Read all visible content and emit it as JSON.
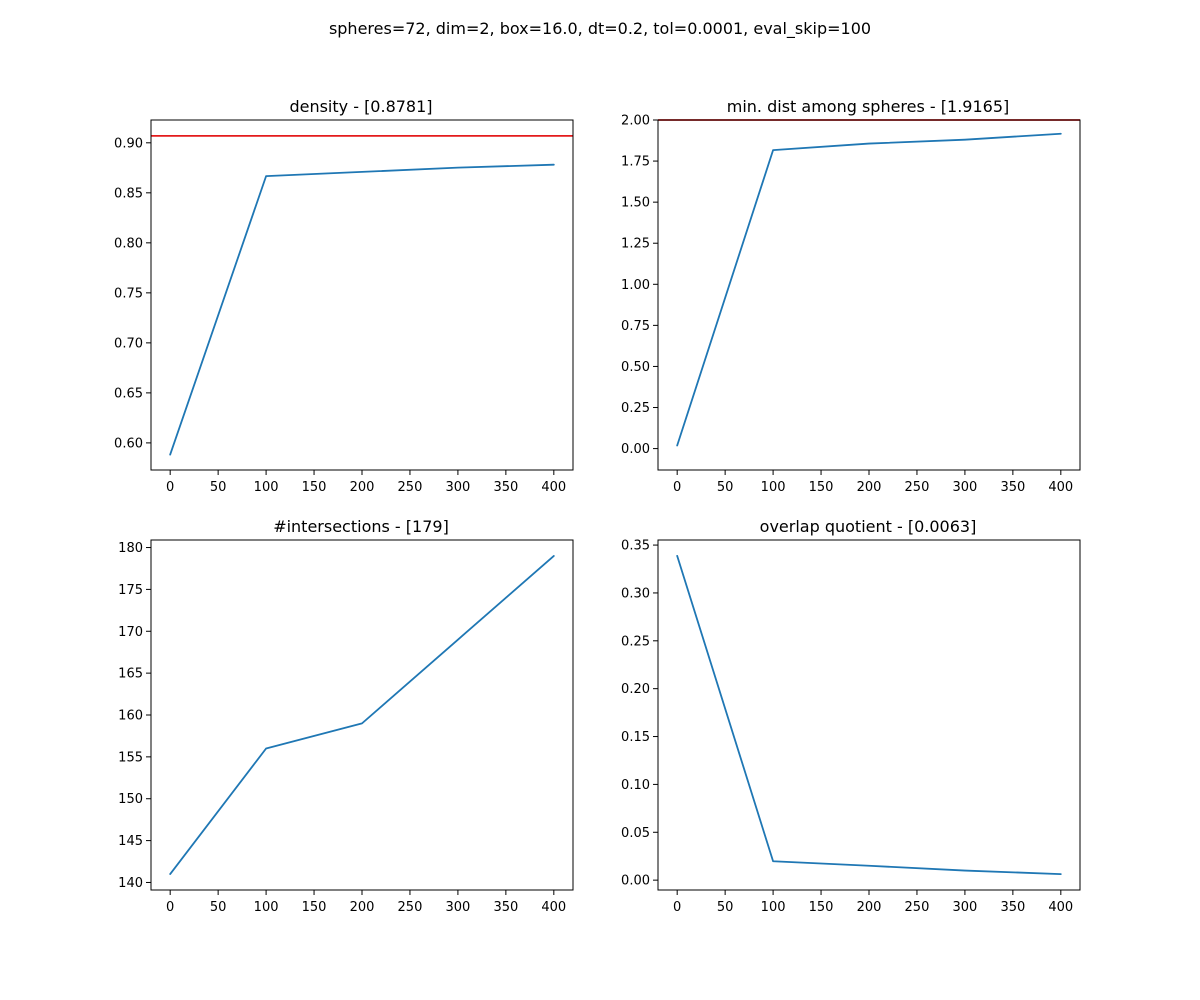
{
  "figure": {
    "suptitle": "spheres=72, dim=2, box=16.0, dt=0.2, tol=0.0001, eval_skip=100"
  },
  "colors": {
    "series": "#1f77b4",
    "reference": "#e41a1c",
    "axes": "#000000"
  },
  "chart_data": [
    {
      "type": "line",
      "title": "density - [0.8781]",
      "x": [
        0,
        100,
        200,
        300,
        400
      ],
      "values": [
        0.5883,
        0.8667,
        0.8709,
        0.8752,
        0.8781
      ],
      "xlim": [
        -20,
        420
      ],
      "ylim": [
        0.5729,
        0.9228
      ],
      "xticks": [
        0,
        50,
        100,
        150,
        200,
        250,
        300,
        350,
        400
      ],
      "yticks": [
        0.6,
        0.65,
        0.7,
        0.75,
        0.8,
        0.85,
        0.9
      ],
      "ytick_decimals": 2,
      "hline": 0.9069,
      "grid": false
    },
    {
      "type": "line",
      "title": "min. dist among spheres - [1.9165]",
      "x": [
        0,
        100,
        200,
        300,
        400
      ],
      "values": [
        0.0188,
        1.8165,
        1.8566,
        1.8801,
        1.9165
      ],
      "xlim": [
        -20,
        420
      ],
      "ylim": [
        -0.1303,
        2.0
      ],
      "xticks": [
        0,
        50,
        100,
        150,
        200,
        250,
        300,
        350,
        400
      ],
      "yticks": [
        0.0,
        0.25,
        0.5,
        0.75,
        1.0,
        1.25,
        1.5,
        1.75,
        2.0
      ],
      "ytick_decimals": 2,
      "hline": 2.0,
      "grid": false
    },
    {
      "type": "line",
      "title": "#intersections - [179]",
      "x": [
        0,
        100,
        200,
        300,
        400
      ],
      "values": [
        141,
        156,
        159,
        169,
        179
      ],
      "xlim": [
        -20,
        420
      ],
      "ylim": [
        139.1,
        180.9
      ],
      "xticks": [
        0,
        50,
        100,
        150,
        200,
        250,
        300,
        350,
        400
      ],
      "yticks": [
        140,
        145,
        150,
        155,
        160,
        165,
        170,
        175,
        180
      ],
      "ytick_decimals": 0,
      "grid": false
    },
    {
      "type": "line",
      "title": "overlap quotient - [0.0063]",
      "x": [
        0,
        100,
        200,
        300,
        400
      ],
      "values": [
        0.3387,
        0.0197,
        0.015,
        0.01,
        0.0063
      ],
      "xlim": [
        -20,
        420
      ],
      "ylim": [
        -0.0103,
        0.3553
      ],
      "xticks": [
        0,
        50,
        100,
        150,
        200,
        250,
        300,
        350,
        400
      ],
      "yticks": [
        0.0,
        0.05,
        0.1,
        0.15,
        0.2,
        0.25,
        0.3,
        0.35
      ],
      "ytick_decimals": 2,
      "grid": false
    }
  ]
}
